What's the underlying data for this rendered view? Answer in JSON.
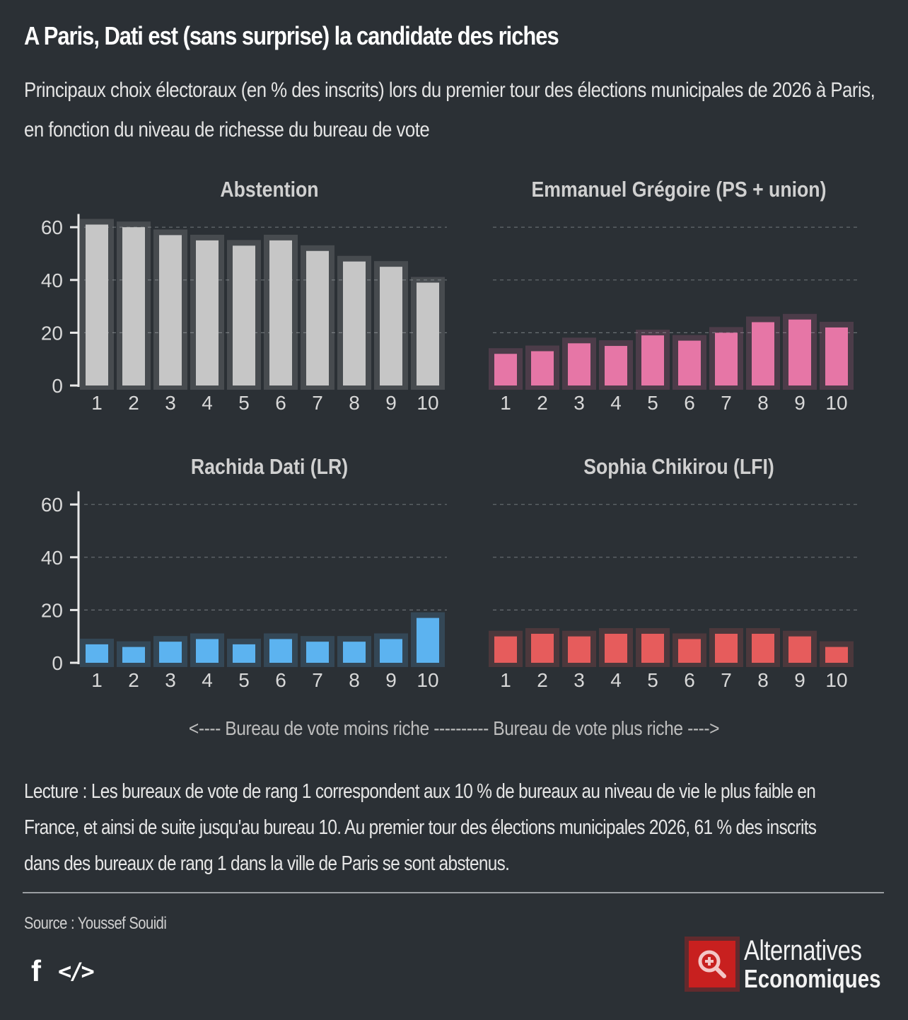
{
  "header": {
    "title": "A Paris, Dati est (sans surprise) la candidate des riches",
    "subtitle": "Principaux choix électoraux (en % des inscrits) lors du premier tour des élections municipales de 2026 à Paris, en fonction du niveau de richesse du bureau de vote"
  },
  "colors": {
    "background": "#2b3035",
    "abstention": "#c6c6c6",
    "gregoire": "#e676a6",
    "dati": "#5cb3f0",
    "chikirou": "#e65c5c",
    "logo": "#c8201f"
  },
  "chart_data": [
    {
      "type": "bar",
      "title": "Abstention",
      "categories": [
        "1",
        "2",
        "3",
        "4",
        "5",
        "6",
        "7",
        "8",
        "9",
        "10"
      ],
      "values": [
        61,
        60,
        57,
        55,
        53,
        55,
        51,
        47,
        45,
        39
      ],
      "xlabel": "",
      "ylabel": "",
      "yticks": [
        "0",
        "20",
        "40",
        "60"
      ],
      "ylim": [
        0,
        65
      ],
      "grid": true,
      "y_axis_shown": true,
      "color": "#c6c6c6"
    },
    {
      "type": "bar",
      "title": "Emmanuel Grégoire (PS + union)",
      "categories": [
        "1",
        "2",
        "3",
        "4",
        "5",
        "6",
        "7",
        "8",
        "9",
        "10"
      ],
      "values": [
        12,
        13,
        16,
        15,
        19,
        17,
        20,
        24,
        25,
        22
      ],
      "xlabel": "",
      "ylabel": "",
      "yticks": [],
      "ylim": [
        0,
        65
      ],
      "grid": true,
      "y_axis_shown": false,
      "color": "#e676a6"
    },
    {
      "type": "bar",
      "title": "Rachida Dati (LR)",
      "categories": [
        "1",
        "2",
        "3",
        "4",
        "5",
        "6",
        "7",
        "8",
        "9",
        "10"
      ],
      "values": [
        7,
        6,
        8,
        9,
        7,
        9,
        8,
        8,
        9,
        17
      ],
      "xlabel": "",
      "ylabel": "",
      "yticks": [
        "0",
        "20",
        "40",
        "60"
      ],
      "ylim": [
        0,
        65
      ],
      "grid": true,
      "y_axis_shown": true,
      "color": "#5cb3f0"
    },
    {
      "type": "bar",
      "title": "Sophia Chikirou (LFI)",
      "categories": [
        "1",
        "2",
        "3",
        "4",
        "5",
        "6",
        "7",
        "8",
        "9",
        "10"
      ],
      "values": [
        10,
        11,
        10,
        11,
        11,
        9,
        11,
        11,
        10,
        6
      ],
      "xlabel": "",
      "ylabel": "",
      "yticks": [],
      "ylim": [
        0,
        65
      ],
      "grid": true,
      "y_axis_shown": false,
      "color": "#e65c5c"
    }
  ],
  "direction_label": "<---- Bureau de vote moins riche ---------- Bureau de vote plus riche ---->",
  "reading_note": "Lecture : Les bureaux de vote de rang 1 correspondent aux 10 % de bureaux au niveau de vie le plus faible en France, et ainsi de suite jusqu'au bureau 10. Au premier tour des élections municipales 2026, 61 % des inscrits dans des bureaux de rang 1 dans la ville de Paris se sont abstenus.",
  "footer": {
    "source": "Source : Youssef Souidi",
    "share_icons": [
      "facebook-icon",
      "embed-code-icon"
    ],
    "facebook_glyph": "f",
    "embed_glyph": "</>",
    "logo_line1": "Alternatives",
    "logo_line2": "Economiques"
  }
}
